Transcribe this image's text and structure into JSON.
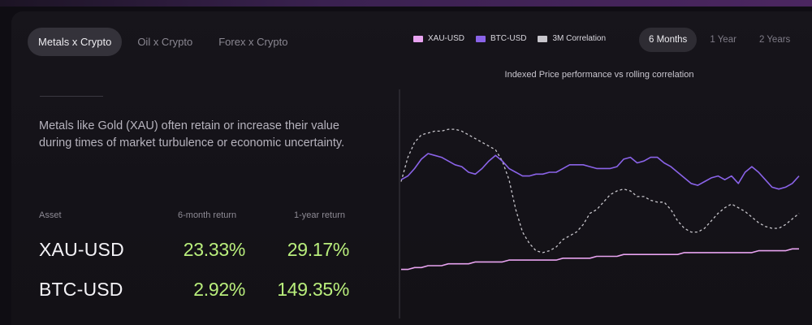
{
  "tabs": [
    {
      "label": "Metals x Crypto",
      "active": true
    },
    {
      "label": "Oil x Crypto",
      "active": false
    },
    {
      "label": "Forex x Crypto",
      "active": false
    }
  ],
  "description": "Metals like Gold (XAU) often retain or increase their value during times of market turbulence or economic uncertainty.",
  "table": {
    "headers": {
      "asset": "Asset",
      "six_month": "6-month return",
      "one_year": "1-year return"
    },
    "rows": [
      {
        "asset": "XAU-USD",
        "six_month": "23.33%",
        "one_year": "29.17%"
      },
      {
        "asset": "BTC-USD",
        "six_month": "2.92%",
        "one_year": "149.35%"
      }
    ]
  },
  "legend": [
    {
      "label": "XAU-USD",
      "color": "#e8a3f0"
    },
    {
      "label": "BTC-USD",
      "color": "#8a63e8"
    },
    {
      "label": "3M Correlation",
      "color": "#c8c6cc"
    }
  ],
  "ranges": [
    {
      "label": "6 Months",
      "active": true
    },
    {
      "label": "1 Year",
      "active": false
    },
    {
      "label": "2 Years",
      "active": false
    }
  ],
  "chart_title": "Indexed Price performance vs rolling correlation",
  "chart_data": {
    "type": "line",
    "title": "Indexed Price performance vs rolling correlation",
    "x_count": 60,
    "y_range": [
      0,
      100
    ],
    "series": [
      {
        "name": "XAU-USD",
        "color": "#e8a3f0",
        "style": "solid",
        "values": [
          8,
          8,
          9,
          9,
          10,
          10,
          10,
          11,
          11,
          11,
          11,
          12,
          12,
          12,
          12,
          12,
          13,
          13,
          13,
          13,
          13,
          13,
          13,
          13,
          14,
          14,
          14,
          14,
          14,
          15,
          15,
          15,
          15,
          16,
          16,
          16,
          16,
          16,
          16,
          16,
          16,
          16,
          17,
          17,
          17,
          17,
          17,
          17,
          17,
          17,
          17,
          17,
          17,
          18,
          18,
          18,
          18,
          18,
          19,
          19
        ]
      },
      {
        "name": "BTC-USD",
        "color": "#8a63e8",
        "style": "solid",
        "values": [
          56,
          58,
          62,
          67,
          70,
          69,
          68,
          66,
          64,
          63,
          60,
          59,
          62,
          66,
          69,
          66,
          62,
          60,
          58,
          58,
          59,
          59,
          60,
          60,
          62,
          64,
          64,
          64,
          63,
          62,
          62,
          62,
          63,
          67,
          68,
          65,
          66,
          68,
          68,
          65,
          63,
          60,
          57,
          54,
          53,
          55,
          57,
          58,
          56,
          58,
          54,
          60,
          63,
          60,
          56,
          52,
          51,
          52,
          54,
          58
        ]
      },
      {
        "name": "3M Correlation",
        "color": "#c8c6cc",
        "style": "dashed",
        "values": [
          55,
          68,
          76,
          80,
          81,
          82,
          82,
          83,
          83,
          82,
          80,
          78,
          76,
          74,
          72,
          66,
          56,
          40,
          28,
          22,
          18,
          17,
          18,
          20,
          24,
          26,
          28,
          32,
          38,
          40,
          44,
          48,
          50,
          51,
          50,
          47,
          47,
          45,
          44,
          44,
          40,
          34,
          30,
          28,
          28,
          30,
          34,
          38,
          41,
          43,
          41,
          39,
          36,
          33,
          31,
          30,
          30,
          32,
          35,
          38
        ]
      }
    ],
    "grid": false
  }
}
